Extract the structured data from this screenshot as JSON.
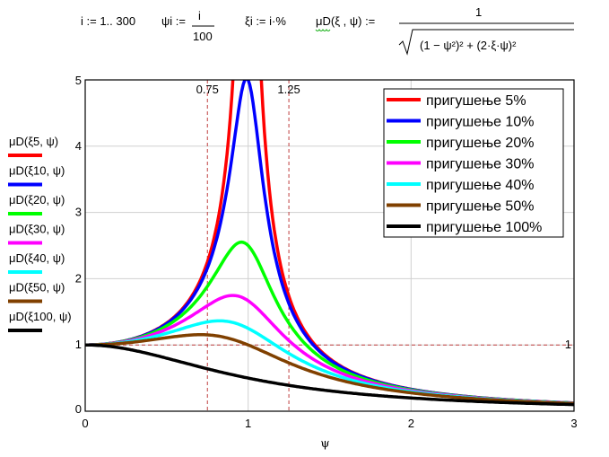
{
  "formulas": {
    "range": "i := 1.. 300",
    "psi_lhs": "ψi :=",
    "psi_num": "i",
    "psi_den": "100",
    "xi_def": "ξi := i·%",
    "func_lhs": "μD(ξ , ψ) :=",
    "func_num": "1",
    "func_den": "(1 − ψ²)² + (2·ξ·ψ)²"
  },
  "chart_data": {
    "type": "line",
    "title": "",
    "xlabel": "ψ",
    "ylabel": "",
    "xlim": [
      0,
      3
    ],
    "ylim": [
      0,
      5
    ],
    "xticks": [
      "0",
      "1",
      "2",
      "3"
    ],
    "yticks": [
      "0",
      "1",
      "2",
      "3",
      "4",
      "5"
    ],
    "grid": true,
    "formula": "1/sqrt((1-ψ^2)^2+(2ξψ)^2)",
    "psi_step": 0.01,
    "markers": {
      "vertical": [
        {
          "value": 0.75,
          "label": "0.75"
        },
        {
          "value": 1.25,
          "label": "1.25"
        }
      ],
      "horizontal": [
        {
          "value": 1,
          "label": "1"
        }
      ]
    },
    "legend_position": "top-right",
    "series": [
      {
        "name": "пригушење 5%",
        "trace": "μD(ξ5, ψ)",
        "sub": "5",
        "xi": 0.05,
        "color": "#ff0000"
      },
      {
        "name": "пригушење 10%",
        "trace": "μD(ξ10, ψ)",
        "sub": "10",
        "xi": 0.1,
        "color": "#0000ff"
      },
      {
        "name": "пригушење 20%",
        "trace": "μD(ξ20, ψ)",
        "sub": "20",
        "xi": 0.2,
        "color": "#00ff00"
      },
      {
        "name": "пригушење 30%",
        "trace": "μD(ξ30, ψ)",
        "sub": "30",
        "xi": 0.3,
        "color": "#ff00ff"
      },
      {
        "name": "пригушење 40%",
        "trace": "μD(ξ40, ψ)",
        "sub": "40",
        "xi": 0.4,
        "color": "#00ffff"
      },
      {
        "name": "пригушење 50%",
        "trace": "μD(ξ50, ψ)",
        "sub": "50",
        "xi": 0.5,
        "color": "#804000"
      },
      {
        "name": "пригушење 100%",
        "trace": "μD(ξ100, ψ)",
        "sub": "100",
        "xi": 1.0,
        "color": "#000000"
      }
    ]
  }
}
